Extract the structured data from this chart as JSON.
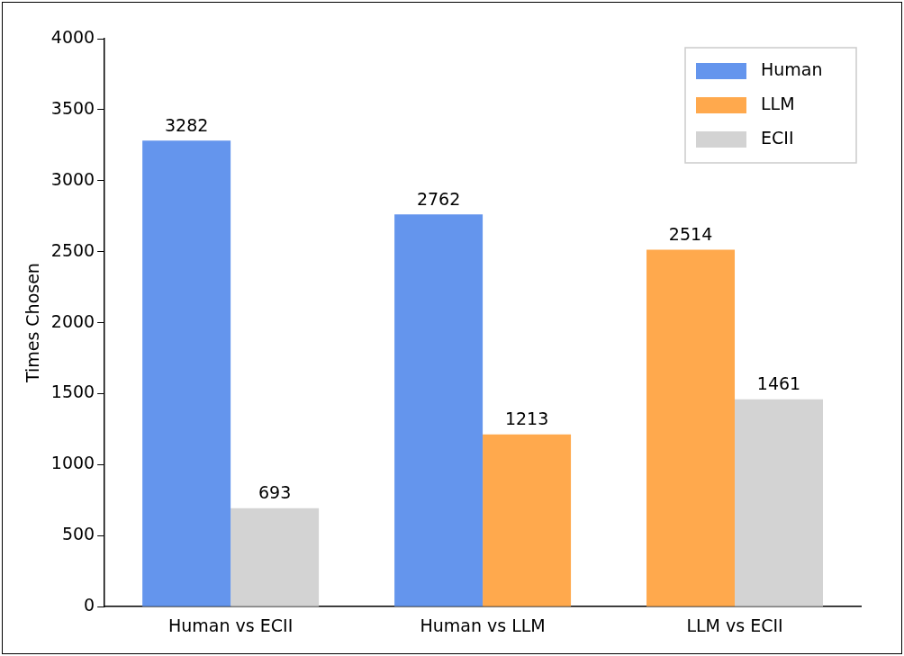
{
  "chart_data": {
    "type": "bar",
    "ylabel": "Times Chosen",
    "categories": [
      "Human vs ECII",
      "Human vs LLM",
      "LLM vs ECII"
    ],
    "series": [
      {
        "name": "Human",
        "color": "#6495ed",
        "values": [
          3282,
          2762,
          null
        ]
      },
      {
        "name": "LLM",
        "color": "#ffa94d",
        "values": [
          null,
          1213,
          2514
        ]
      },
      {
        "name": "ECII",
        "color": "#d3d3d3",
        "values": [
          693,
          null,
          1461
        ]
      }
    ],
    "ylim": [
      0,
      4000
    ],
    "yticks": [
      0,
      500,
      1000,
      1500,
      2000,
      2500,
      3000,
      3500,
      4000
    ],
    "grid": false,
    "legend": "top right",
    "data_labels": true
  }
}
